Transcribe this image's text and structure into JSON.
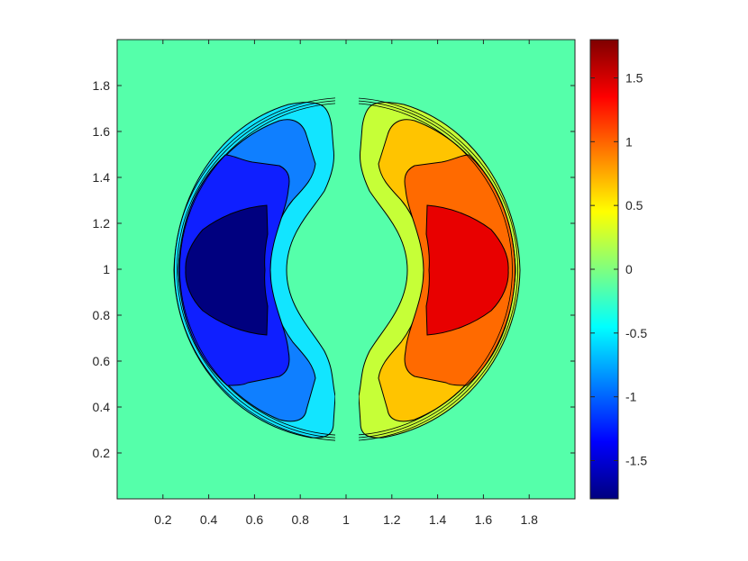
{
  "chart_data": {
    "type": "heatmap",
    "subtype": "filled-contour",
    "title": "",
    "xlabel": "",
    "ylabel": "",
    "xlim": [
      0,
      2
    ],
    "ylim": [
      0,
      2
    ],
    "x_ticks": [
      "0.2",
      "0.4",
      "0.6",
      "0.8",
      "1",
      "1.2",
      "1.4",
      "1.6",
      "1.8"
    ],
    "y_ticks": [
      "0.2",
      "0.4",
      "0.6",
      "0.8",
      "1",
      "1.2",
      "1.4",
      "1.6",
      "1.8"
    ],
    "background_value": 0,
    "colormap": "jet",
    "colorbar": {
      "placement": "right",
      "range": [
        -1.8,
        1.8
      ],
      "ticks": [
        "-1.5",
        "-1",
        "-0.5",
        "0",
        "0.5",
        "1",
        "1.5"
      ]
    },
    "contour_levels": [
      -1.5,
      -1.0,
      -0.5,
      0.5,
      1.0,
      1.5
    ],
    "level_colors": {
      "-1.5": "#00007f",
      "-1.0": "#0f1fff",
      "-0.5": "#0f7fff",
      "-0.25": "#12e5ff",
      "0": "#55ffaa",
      "0.25": "#c6ff37",
      "0.5": "#ffc400",
      "1.0": "#ff6a00",
      "1.5": "#e80000"
    },
    "grid": false,
    "outer_ring": {
      "center": [
        1,
        1
      ],
      "radius": 0.75
    }
  }
}
